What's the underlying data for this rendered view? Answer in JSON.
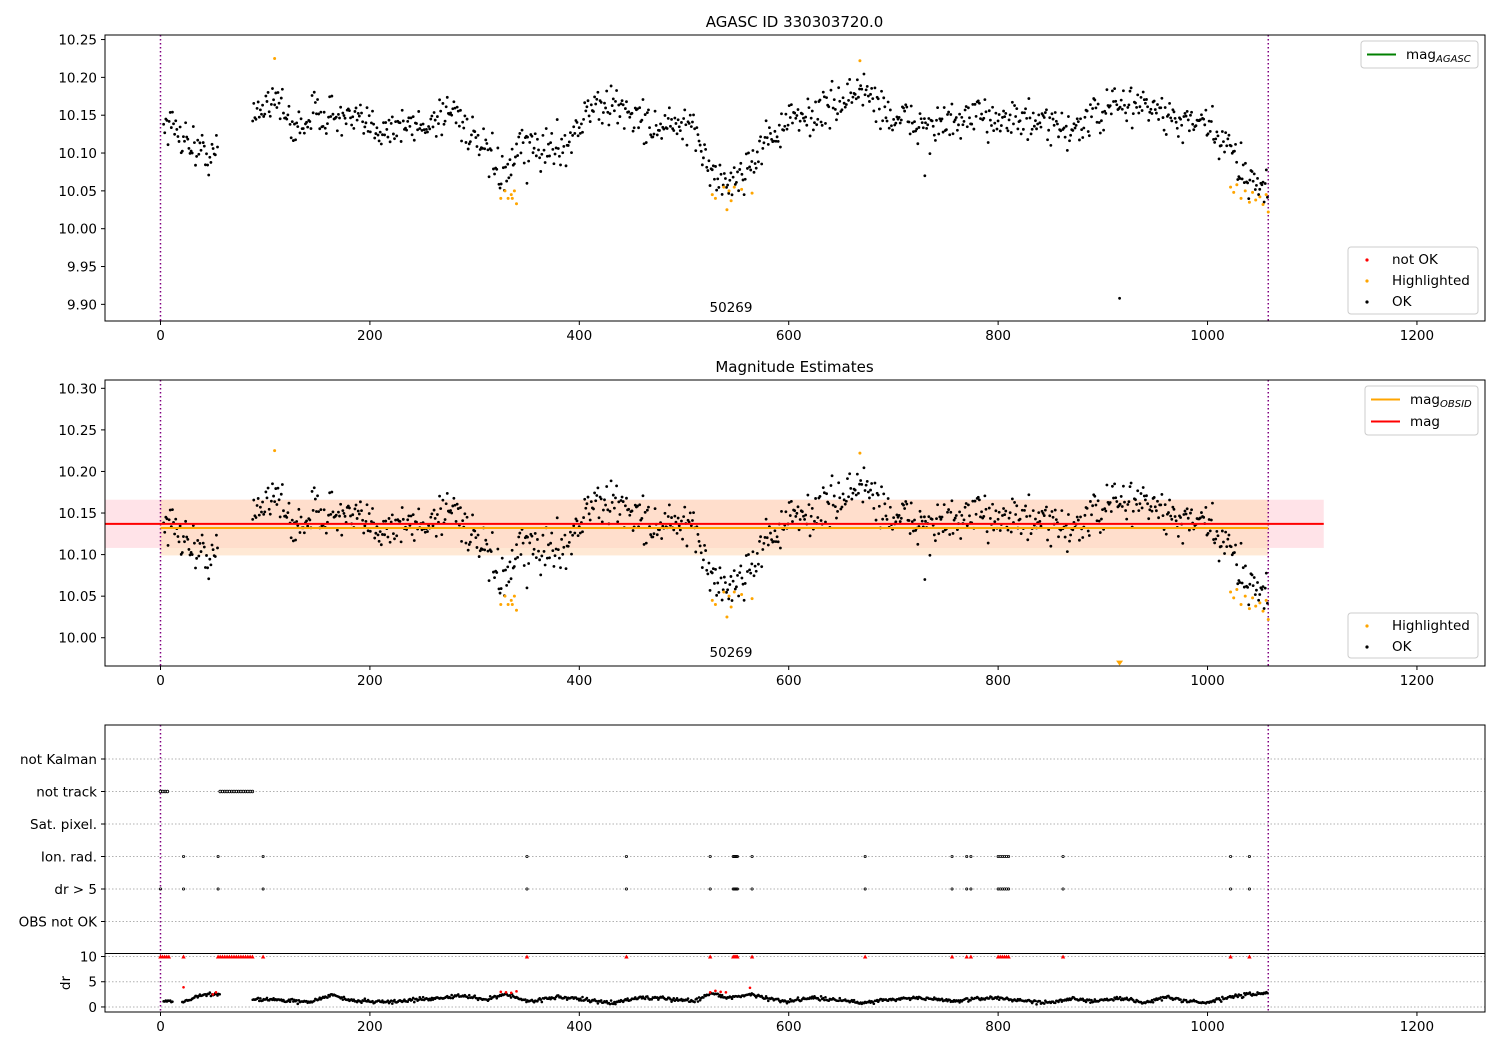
{
  "figure": {
    "title_top": "AGASC ID 330303720.0",
    "title_mid": "Magnitude Estimates",
    "obsid_label": "50269"
  },
  "colors": {
    "ok": "#000000",
    "highlighted": "#ffa500",
    "not_ok": "#ff0000",
    "agasc_line": "#008000",
    "mag_line": "#ff0000",
    "mag_obsid_line": "#ffa500",
    "band_mag": "#ffc0cb",
    "band_obsid": "#ffdab9",
    "vline": "#800080",
    "grid": "#b0b0b0"
  },
  "chart_data": [
    {
      "type": "scatter",
      "title": "AGASC ID 330303720.0",
      "xlim": [
        -53,
        1265
      ],
      "ylim": [
        9.878,
        10.256
      ],
      "xticks": [
        0,
        200,
        400,
        600,
        800,
        1000,
        1200
      ],
      "yticks": [
        9.9,
        9.95,
        10.0,
        10.05,
        10.1,
        10.15,
        10.2,
        10.25
      ],
      "ytick_labels": [
        "9.90",
        "9.95",
        "10.00",
        "10.05",
        "10.10",
        "10.15",
        "10.20",
        "10.25"
      ],
      "annotation": "50269",
      "obsid_bounds": [
        0,
        1058
      ],
      "legend_lines": [
        "mag"
      ],
      "legend_lines_sub": [
        "AGASC"
      ],
      "legend_points": [
        "not OK",
        "Highlighted",
        "OK"
      ],
      "legend_placement": [
        "top-right",
        "lower-right"
      ],
      "series": [
        {
          "name": "OK",
          "color": "#000000",
          "trend": [
            [
              5,
              10.14
            ],
            [
              20,
              10.125
            ],
            [
              35,
              10.105
            ],
            [
              50,
              10.095
            ],
            [
              52,
              10.1
            ],
            [
              90,
              10.15
            ],
            [
              110,
              10.18
            ],
            [
              125,
              10.13
            ],
            [
              150,
              10.155
            ],
            [
              200,
              10.135
            ],
            [
              250,
              10.135
            ],
            [
              280,
              10.16
            ],
            [
              300,
              10.115
            ],
            [
              320,
              10.085
            ],
            [
              330,
              10.065
            ],
            [
              345,
              10.11
            ],
            [
              370,
              10.105
            ],
            [
              390,
              10.115
            ],
            [
              410,
              10.16
            ],
            [
              440,
              10.16
            ],
            [
              470,
              10.135
            ],
            [
              500,
              10.135
            ],
            [
              515,
              10.115
            ],
            [
              530,
              10.065
            ],
            [
              545,
              10.06
            ],
            [
              560,
              10.08
            ],
            [
              580,
              10.12
            ],
            [
              600,
              10.14
            ],
            [
              640,
              10.16
            ],
            [
              670,
              10.185
            ],
            [
              700,
              10.145
            ],
            [
              740,
              10.135
            ],
            [
              800,
              10.15
            ],
            [
              830,
              10.14
            ],
            [
              860,
              10.13
            ],
            [
              885,
              10.14
            ],
            [
              905,
              10.16
            ],
            [
              940,
              10.165
            ],
            [
              970,
              10.14
            ],
            [
              1000,
              10.135
            ],
            [
              1020,
              10.105
            ],
            [
              1040,
              10.07
            ],
            [
              1058,
              10.05
            ]
          ],
          "gaps": [
            [
              55,
              88
            ]
          ],
          "outliers": [
            [
              916,
              9.908
            ],
            [
              730,
              10.07
            ],
            [
              350,
              10.06
            ]
          ]
        },
        {
          "name": "Highlighted",
          "color": "#ffa500",
          "points": [
            [
              325,
              10.04
            ],
            [
              329,
              10.05
            ],
            [
              332,
              10.04
            ],
            [
              335,
              10.045
            ],
            [
              338,
              10.05
            ],
            [
              340,
              10.033
            ],
            [
              336,
              10.04
            ],
            [
              527,
              10.045
            ],
            [
              530,
              10.04
            ],
            [
              538,
              10.055
            ],
            [
              541,
              10.025
            ],
            [
              543,
              10.05
            ],
            [
              545,
              10.037
            ],
            [
              548,
              10.055
            ],
            [
              555,
              10.052
            ],
            [
              565,
              10.047
            ],
            [
              109,
              10.225
            ],
            [
              668,
              10.222
            ],
            [
              1022,
              10.055
            ],
            [
              1025,
              10.048
            ],
            [
              1028,
              10.058
            ],
            [
              1032,
              10.04
            ],
            [
              1036,
              10.05
            ],
            [
              1040,
              10.035
            ],
            [
              1043,
              10.048
            ],
            [
              1046,
              10.038
            ],
            [
              1050,
              10.042
            ],
            [
              1053,
              10.032
            ],
            [
              1056,
              10.045
            ],
            [
              1058,
              10.022
            ]
          ]
        }
      ]
    },
    {
      "type": "scatter",
      "title": "Magnitude Estimates",
      "xlim": [
        -53,
        1265
      ],
      "ylim": [
        9.966,
        10.31
      ],
      "xticks": [
        0,
        200,
        400,
        600,
        800,
        1000,
        1200
      ],
      "yticks": [
        10.0,
        10.05,
        10.1,
        10.15,
        10.2,
        10.25,
        10.3
      ],
      "ytick_labels": [
        "10.00",
        "10.05",
        "10.10",
        "10.15",
        "10.20",
        "10.25",
        "10.30"
      ],
      "annotation": "50269",
      "mag": 10.137,
      "mag_band": [
        10.108,
        10.166
      ],
      "mag_obsid": 10.132,
      "mag_obsid_band": [
        10.099,
        10.166
      ],
      "legend_lines": [
        "mag",
        "mag"
      ],
      "legend_lines_sub": [
        "OBSID",
        ""
      ],
      "legend_points": [
        "Highlighted",
        "OK"
      ],
      "legend_placement": [
        "top-right",
        "lower-right"
      ],
      "marker_below_axis": [
        916,
        9.97
      ]
    },
    {
      "type": "scatter",
      "title": "",
      "xlim": [
        -53,
        1265
      ],
      "xticks": [
        0,
        200,
        400,
        600,
        800,
        1000,
        1200
      ],
      "flag_categories": [
        "not Kalman",
        "not track",
        "Sat. pixel.",
        "Ion. rad.",
        "dr > 5",
        "OBS not OK"
      ],
      "flags": {
        "not track": [
          [
            0,
            10
          ]
        ],
        "Ion. rad.": [
          22,
          55,
          98,
          350,
          445,
          525,
          547,
          548,
          549,
          550,
          551,
          565,
          673,
          756,
          770,
          774,
          800,
          802,
          804,
          806,
          808,
          810,
          862,
          1022,
          1040
        ],
        "dr > 5": [
          0,
          22,
          55,
          98,
          350,
          445,
          525,
          547,
          548,
          549,
          550,
          551,
          565,
          673,
          756,
          770,
          774,
          800,
          802,
          804,
          806,
          808,
          810,
          862,
          1022,
          1040
        ]
      },
      "not_track_ranges": [
        [
          0,
          8
        ],
        [
          57,
          88
        ]
      ],
      "dr_ylabel": "dr",
      "dr_yticks": [
        0,
        5,
        10
      ],
      "dr_ylim": [
        -1,
        10.5
      ],
      "dr_clipped_at": 10,
      "dr_trend": [
        [
          5,
          1.2
        ],
        [
          20,
          1.0
        ],
        [
          25,
          1.4
        ],
        [
          40,
          2.3
        ],
        [
          52,
          2.6
        ],
        [
          90,
          1.6
        ],
        [
          120,
          1.3
        ],
        [
          140,
          0.9
        ],
        [
          165,
          2.4
        ],
        [
          180,
          1.3
        ],
        [
          220,
          1.0
        ],
        [
          260,
          1.7
        ],
        [
          290,
          2.2
        ],
        [
          310,
          1.4
        ],
        [
          330,
          2.6
        ],
        [
          350,
          1.1
        ],
        [
          380,
          2.0
        ],
        [
          410,
          1.3
        ],
        [
          430,
          0.8
        ],
        [
          460,
          1.9
        ],
        [
          490,
          1.5
        ],
        [
          510,
          1.2
        ],
        [
          525,
          2.7
        ],
        [
          545,
          1.8
        ],
        [
          565,
          2.6
        ],
        [
          580,
          1.6
        ],
        [
          600,
          1.1
        ],
        [
          620,
          1.9
        ],
        [
          650,
          1.3
        ],
        [
          670,
          0.8
        ],
        [
          690,
          1.4
        ],
        [
          720,
          1.8
        ],
        [
          760,
          1.2
        ],
        [
          780,
          1.6
        ],
        [
          800,
          1.9
        ],
        [
          820,
          1.2
        ],
        [
          850,
          0.9
        ],
        [
          870,
          1.8
        ],
        [
          890,
          1.0
        ],
        [
          915,
          1.8
        ],
        [
          940,
          0.9
        ],
        [
          960,
          1.9
        ],
        [
          980,
          1.2
        ],
        [
          1000,
          0.8
        ],
        [
          1020,
          1.9
        ],
        [
          1040,
          2.5
        ],
        [
          1058,
          2.7
        ]
      ],
      "dr_not_ok": [
        [
          22,
          3.9
        ],
        [
          50,
          2.5
        ],
        [
          53,
          2.9
        ],
        [
          325,
          3.0
        ],
        [
          330,
          2.9
        ],
        [
          335,
          2.8
        ],
        [
          340,
          3.1
        ],
        [
          525,
          2.9
        ],
        [
          530,
          3.2
        ],
        [
          535,
          3.0
        ],
        [
          540,
          2.9
        ],
        [
          563,
          3.8
        ]
      ]
    }
  ]
}
